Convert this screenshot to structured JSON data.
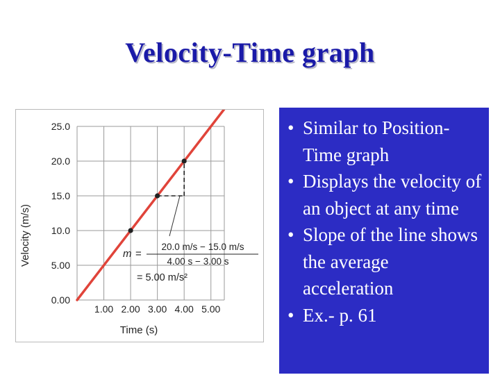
{
  "slide": {
    "title": "Velocity-Time graph",
    "bullets": [
      "Similar to Position-Time graph",
      "Displays the velocity of an object at any time",
      "Slope of the line shows the average acceleration",
      "Ex.- p. 61"
    ]
  },
  "colors": {
    "title": "#1a1aa8",
    "panel": "#2c2cc4",
    "line": "#e0443a"
  },
  "chart_data": {
    "type": "line",
    "xlabel": "Time (s)",
    "ylabel": "Velocity (m/s)",
    "xlim": [
      0,
      5.5
    ],
    "ylim": [
      0,
      25
    ],
    "xticks": [
      "1.00",
      "2.00",
      "3.00",
      "4.00",
      "5.00"
    ],
    "yticks": [
      "0.00",
      "5.00",
      "10.0",
      "15.0",
      "20.0",
      "25.0"
    ],
    "grid": true,
    "series": [
      {
        "x": [
          0,
          5.5
        ],
        "y": [
          0,
          27.5
        ]
      }
    ],
    "points": [
      {
        "x": 2,
        "y": 10
      },
      {
        "x": 3,
        "y": 15
      },
      {
        "x": 4,
        "y": 20
      }
    ],
    "slope_triangle": {
      "x1": 3,
      "y1": 15,
      "x2": 4,
      "y2": 20
    },
    "annotation": {
      "m": "m",
      "equals": "=",
      "numerator": "20.0 m/s − 15.0 m/s",
      "denominator": "4.00 s − 3.00 s",
      "result": "= 5.00 m/s²"
    }
  }
}
